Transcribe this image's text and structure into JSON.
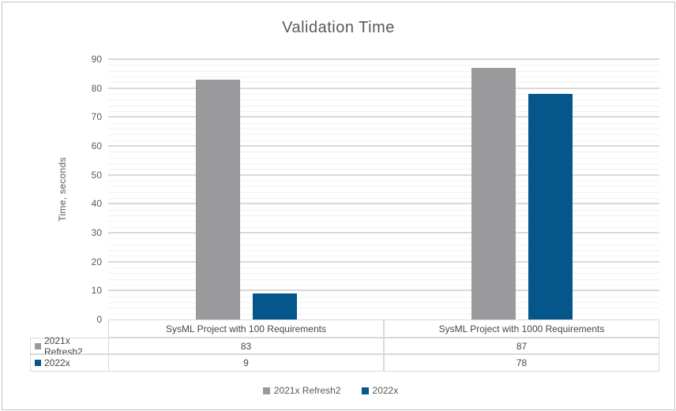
{
  "window": {
    "background": "#ffffff",
    "border_color": "#c3c3c3"
  },
  "chart_data": {
    "type": "bar",
    "title": "Validation Time",
    "xlabel": "",
    "ylabel": "Time, seconds",
    "categories": [
      "SysML Project with 100 Requirements",
      "SysML Project with 1000 Requirements"
    ],
    "series": [
      {
        "name": "2021x Refresh2",
        "color": "#9a9a9c",
        "values": [
          83,
          87
        ]
      },
      {
        "name": "2022x",
        "color": "#05568b",
        "values": [
          9,
          78
        ]
      }
    ],
    "ylim": [
      0,
      90
    ],
    "y_ticks": [
      0,
      10,
      20,
      30,
      40,
      50,
      60,
      70,
      80,
      90
    ],
    "y_major_unit": 10,
    "y_minor_unit": 2,
    "grid": "horizontal major+minor",
    "legend_position": "bottom",
    "data_table_shown": true
  },
  "colors": {
    "major_grid": "#d9d9d9",
    "minor_grid": "#f2f2f2",
    "table_border": "#d9d9d9",
    "text": "#595959"
  }
}
